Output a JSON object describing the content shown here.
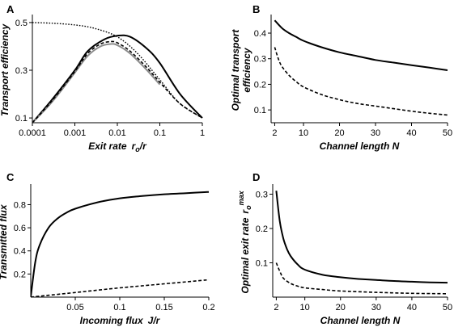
{
  "chart_data": [
    {
      "panel": "A",
      "type": "line",
      "xlabel": "Exit rate",
      "xlabel_var": "r",
      "xlabel_sub": "o",
      "xlabel_tail": "/r",
      "ylabel": "Transport efficiency",
      "xscale": "log",
      "xlim": [
        0.0001,
        1
      ],
      "ylim": [
        0.08,
        0.52
      ],
      "xticks": [
        0.0001,
        0.001,
        0.01,
        0.1,
        1
      ],
      "xtick_labels": [
        "0.0001",
        "0.001",
        "0.01",
        "0.1",
        "1"
      ],
      "yticks": [
        0.1,
        0.3,
        0.5
      ],
      "ytick_labels": [
        "0.1",
        "0.3",
        "0.5"
      ],
      "series": [
        {
          "style": "dotted",
          "color": "#000000",
          "x": [
            0.0001,
            0.0003,
            0.001,
            0.003,
            0.01,
            0.03,
            0.1,
            0.3,
            1
          ],
          "y": [
            0.5,
            0.497,
            0.49,
            0.475,
            0.44,
            0.37,
            0.26,
            0.16,
            0.1
          ]
        },
        {
          "style": "solid",
          "color": "#000000",
          "x": [
            0.0001,
            0.0003,
            0.001,
            0.002,
            0.005,
            0.01,
            0.02,
            0.05,
            0.1,
            0.3,
            1
          ],
          "y": [
            0.08,
            0.18,
            0.3,
            0.38,
            0.43,
            0.445,
            0.44,
            0.39,
            0.33,
            0.2,
            0.1
          ]
        },
        {
          "style": "gray",
          "color": "#8c8c8c",
          "x": [
            0.0001,
            0.0003,
            0.001,
            0.002,
            0.004,
            0.007,
            0.01,
            0.02,
            0.05,
            0.1
          ],
          "y": [
            0.08,
            0.17,
            0.29,
            0.36,
            0.4,
            0.41,
            0.405,
            0.37,
            0.3,
            0.24
          ]
        },
        {
          "style": "dashed",
          "color": "#000000",
          "x": [
            0.0001,
            0.0003,
            0.001,
            0.002,
            0.004,
            0.007,
            0.01,
            0.02,
            0.05,
            0.1,
            0.3,
            1
          ],
          "y": [
            0.08,
            0.175,
            0.295,
            0.37,
            0.41,
            0.42,
            0.415,
            0.38,
            0.31,
            0.25,
            0.16,
            0.1
          ]
        }
      ]
    },
    {
      "panel": "B",
      "type": "line",
      "xlabel": "Channel length N",
      "ylabel": "Optimal transport efficiency",
      "xlim": [
        1,
        50
      ],
      "ylim": [
        0.05,
        0.46
      ],
      "xticks": [
        2,
        10,
        20,
        30,
        40,
        50
      ],
      "xtick_labels": [
        "2",
        "10",
        "20",
        "30",
        "40",
        "50"
      ],
      "yticks": [
        0.1,
        0.2,
        0.3,
        0.4
      ],
      "ytick_labels": [
        "0.1",
        "0.2",
        "0.3",
        "0.4"
      ],
      "series": [
        {
          "style": "solid",
          "color": "#000000",
          "x": [
            2,
            4,
            6,
            8,
            10,
            15,
            20,
            25,
            30,
            35,
            40,
            45,
            50
          ],
          "y": [
            0.45,
            0.42,
            0.4,
            0.385,
            0.37,
            0.345,
            0.325,
            0.31,
            0.295,
            0.285,
            0.275,
            0.265,
            0.255
          ]
        },
        {
          "style": "dashed",
          "color": "#000000",
          "x": [
            2,
            3,
            4,
            6,
            8,
            10,
            15,
            20,
            25,
            30,
            35,
            40,
            45,
            50
          ],
          "y": [
            0.345,
            0.3,
            0.27,
            0.235,
            0.21,
            0.19,
            0.16,
            0.14,
            0.125,
            0.115,
            0.105,
            0.095,
            0.087,
            0.08
          ]
        }
      ]
    },
    {
      "panel": "C",
      "type": "line",
      "xlabel": "Incoming flux",
      "xlabel_tail": "J/r",
      "ylabel": "Transmitted flux",
      "xlim": [
        0,
        0.2
      ],
      "ylim": [
        0,
        0.95
      ],
      "xticks": [
        0.05,
        0.1,
        0.15,
        0.2
      ],
      "xtick_labels": [
        "0.05",
        "0.1",
        "0.15",
        "0.2"
      ],
      "yticks": [
        0.2,
        0.4,
        0.6,
        0.8
      ],
      "ytick_labels": [
        "0.2",
        "0.4",
        "0.6",
        "0.8"
      ],
      "series": [
        {
          "style": "solid",
          "color": "#000000",
          "x": [
            0,
            0.005,
            0.01,
            0.02,
            0.03,
            0.04,
            0.05,
            0.075,
            0.1,
            0.125,
            0.15,
            0.175,
            0.2
          ],
          "y": [
            0,
            0.3,
            0.45,
            0.6,
            0.68,
            0.73,
            0.765,
            0.82,
            0.855,
            0.875,
            0.89,
            0.9,
            0.91
          ]
        },
        {
          "style": "dashed",
          "color": "#000000",
          "x": [
            0,
            0.05,
            0.1,
            0.15,
            0.2
          ],
          "y": [
            0,
            0.04,
            0.08,
            0.115,
            0.15
          ]
        }
      ]
    },
    {
      "panel": "D",
      "type": "line",
      "xlabel": "Channel length N",
      "ylabel": "Optimal exit rate",
      "ylabel_var": "r",
      "ylabel_sub": "o",
      "ylabel_sup": "max",
      "xlim": [
        1,
        50
      ],
      "ylim": [
        0,
        0.32
      ],
      "xticks": [
        2,
        10,
        20,
        30,
        40,
        50
      ],
      "xtick_labels": [
        "2",
        "10",
        "20",
        "30",
        "40",
        "50"
      ],
      "yticks": [
        0.1,
        0.2,
        0.3
      ],
      "ytick_labels": [
        "0.1",
        "0.2",
        "0.3"
      ],
      "series": [
        {
          "style": "solid",
          "color": "#000000",
          "x": [
            2,
            3,
            4,
            5,
            6,
            8,
            10,
            15,
            20,
            25,
            30,
            35,
            40,
            45,
            50
          ],
          "y": [
            0.31,
            0.22,
            0.17,
            0.14,
            0.12,
            0.095,
            0.08,
            0.065,
            0.058,
            0.053,
            0.05,
            0.047,
            0.045,
            0.043,
            0.042
          ]
        },
        {
          "style": "dashed",
          "color": "#000000",
          "x": [
            2,
            3,
            4,
            6,
            8,
            10,
            15,
            20,
            30,
            40,
            50
          ],
          "y": [
            0.1,
            0.075,
            0.055,
            0.04,
            0.032,
            0.027,
            0.022,
            0.018,
            0.014,
            0.011,
            0.01
          ]
        }
      ]
    }
  ]
}
